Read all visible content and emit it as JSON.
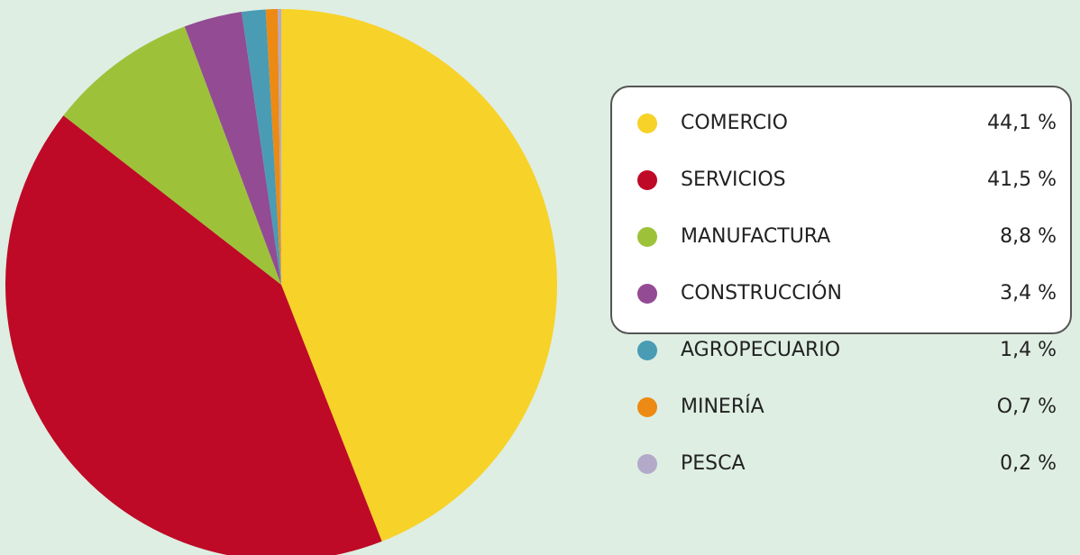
{
  "chart_data": {
    "type": "pie",
    "categories": [
      "COMERCIO",
      "SERVICIOS",
      "MANUFACTURA",
      "CONSTRUCCIÓN",
      "AGROPECUARIO",
      "MINERÍA",
      "PESCA"
    ],
    "values": [
      44.1,
      41.5,
      8.8,
      3.4,
      1.4,
      0.7,
      0.2
    ],
    "value_labels": [
      "44,1 %",
      "41,5 %",
      "8,8 %",
      "3,4 %",
      "1,4 %",
      "O,7 %",
      "0,2 %"
    ],
    "colors": [
      "#f7d229",
      "#be0a26",
      "#9dc23a",
      "#934b93",
      "#4a9cb4",
      "#ec8a13",
      "#b3aac9"
    ]
  }
}
